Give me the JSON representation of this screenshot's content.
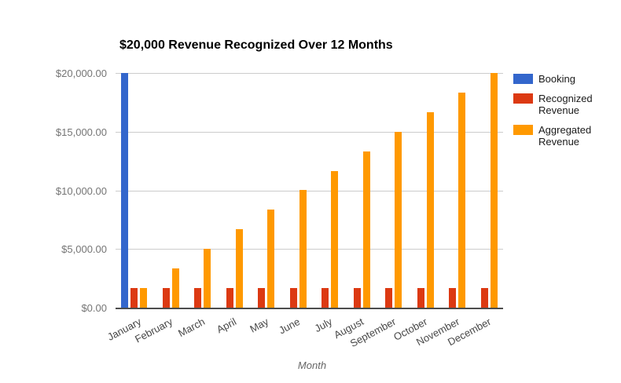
{
  "chart_data": {
    "type": "bar",
    "title": "$20,000 Revenue Recognized Over 12 Months",
    "xlabel": "Month",
    "ylabel": "",
    "categories": [
      "January",
      "February",
      "March",
      "April",
      "May",
      "June",
      "July",
      "August",
      "September",
      "October",
      "November",
      "December"
    ],
    "series": [
      {
        "name": "Booking",
        "color": "#3366CC",
        "values": [
          20000,
          0,
          0,
          0,
          0,
          0,
          0,
          0,
          0,
          0,
          0,
          0
        ]
      },
      {
        "name": "Recognized Revenue",
        "color": "#DC3912",
        "values": [
          1666.67,
          1666.67,
          1666.67,
          1666.67,
          1666.67,
          1666.67,
          1666.67,
          1666.67,
          1666.67,
          1666.67,
          1666.67,
          1666.67
        ]
      },
      {
        "name": "Aggregated Revenue",
        "color": "#FF9900",
        "values": [
          1666.67,
          3333.33,
          5000,
          6666.67,
          8333.33,
          10000,
          11666.67,
          13333.33,
          15000,
          16666.67,
          18333.33,
          20000
        ]
      }
    ],
    "ylim": [
      0,
      20000
    ],
    "yticks": [
      0,
      5000,
      10000,
      15000,
      20000
    ],
    "ytick_labels": [
      "$0.00",
      "$5,000.00",
      "$10,000.00",
      "$15,000.00",
      "$20,000.00"
    ],
    "grid": true,
    "legend_position": "right"
  },
  "colors": {
    "background": "#ffffff",
    "gridline": "#cccccc",
    "axis_line": "#4d4d4d",
    "ytick_text": "#757575",
    "xtick_text": "#474747",
    "title_text": "#000000",
    "legend_text": "#1a1a1a"
  }
}
